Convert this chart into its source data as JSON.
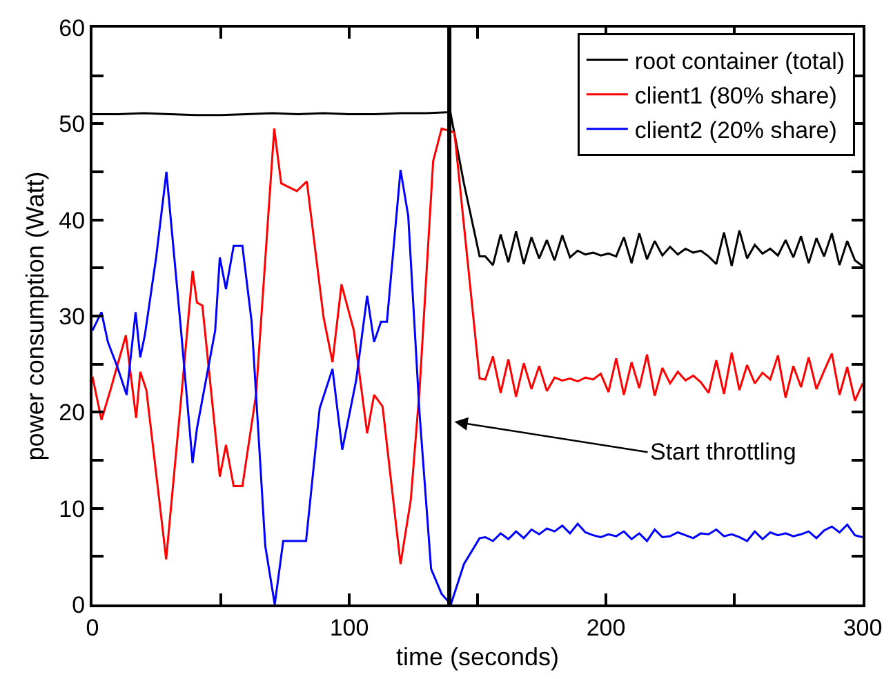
{
  "chart_data": {
    "type": "line",
    "xlabel": "time (seconds)",
    "ylabel": "power consumption (Watt)",
    "xlim": [
      0,
      300
    ],
    "xticks": [
      0,
      {
        "value": 50,
        "label": null
      },
      100,
      {
        "value": 150,
        "label": null
      },
      200,
      {
        "value": 250,
        "label": null
      },
      300
    ],
    "ylim": [
      0,
      60
    ],
    "yticks": [
      0,
      {
        "value": 5,
        "label": null
      },
      10,
      {
        "value": 15,
        "label": null
      },
      20,
      {
        "value": 25,
        "label": null
      },
      30,
      {
        "value": 35,
        "label": null
      },
      40,
      {
        "value": 45,
        "label": null
      },
      50,
      {
        "value": 55,
        "label": null
      },
      60
    ],
    "grid": false,
    "legend": "top right",
    "marker": "none",
    "line_style": "solid",
    "ref_lines": [
      {
        "axis": "x",
        "value": 139,
        "color": "#000000"
      }
    ],
    "annotations": [
      {
        "text": "Start throttling",
        "x": 141,
        "y": 19
      }
    ],
    "series": [
      {
        "name": "root container (total)",
        "color": "#000000",
        "x": [
          0,
          10,
          20,
          30,
          40,
          50,
          60,
          70,
          80,
          90,
          100,
          110,
          120,
          130,
          139.4,
          144.7,
          150.8,
          153,
          156,
          159,
          162,
          165,
          168,
          171,
          174,
          177,
          180,
          183,
          186,
          189,
          192,
          195,
          198,
          201,
          204,
          207,
          210,
          213,
          216,
          219,
          222,
          225,
          228,
          231,
          234,
          237,
          240,
          243,
          246,
          249,
          252,
          255,
          258,
          261,
          264,
          267,
          270,
          273,
          276,
          279,
          282,
          285,
          288,
          291,
          294,
          297,
          300
        ],
        "values": [
          51.0,
          51.0,
          51.1,
          51.0,
          50.9,
          50.9,
          51.0,
          51.1,
          51.0,
          51.1,
          51.0,
          51.0,
          51.1,
          51.1,
          51.2,
          43.8,
          36.2,
          36.2,
          35.3,
          38.5,
          35.6,
          38.8,
          35.4,
          38.2,
          36.0,
          37.9,
          35.8,
          38.4,
          36.1,
          36.8,
          36.4,
          36.6,
          36.3,
          36.5,
          36.2,
          38.2,
          35.5,
          38.6,
          35.9,
          37.8,
          36.3,
          37.2,
          36.4,
          37.0,
          36.6,
          36.8,
          36.2,
          35.4,
          38.7,
          35.2,
          38.9,
          36.0,
          37.4,
          36.5,
          37.0,
          36.3,
          37.9,
          36.1,
          38.3,
          35.5,
          38.1,
          36.2,
          38.6,
          35.3,
          37.8,
          35.8,
          35.2
        ]
      },
      {
        "name": "client1 (80% share)",
        "color": "#ff0000",
        "x": [
          0,
          3.5,
          7,
          13,
          17,
          18.6,
          21,
          26,
          28.7,
          34.5,
          39,
          40.7,
          42.8,
          49.6,
          52,
          55,
          58.4,
          63.7,
          70.8,
          73.5,
          79.6,
          83.5,
          90,
          93.5,
          97,
          101.8,
          107,
          109.7,
          113,
          120,
          124,
          127.4,
          132.7,
          136,
          141,
          150.8,
          153,
          156,
          159,
          162,
          165,
          168,
          171,
          174,
          177,
          180,
          183,
          186,
          189,
          192,
          195,
          198,
          201,
          204,
          207,
          210,
          213,
          216,
          219,
          222,
          225,
          228,
          231,
          234,
          237,
          240,
          243,
          246,
          249,
          252,
          255,
          258,
          261,
          264,
          267,
          270,
          273,
          276,
          279,
          282,
          285,
          288,
          291,
          294,
          297,
          300
        ],
        "values": [
          23.7,
          19.2,
          22.3,
          28,
          19.4,
          24.2,
          22.3,
          10.9,
          4.7,
          21.3,
          34.7,
          31.4,
          31.1,
          13.3,
          16.6,
          12.3,
          12.3,
          21.8,
          49.5,
          43.8,
          43,
          44,
          29.9,
          25.2,
          33.3,
          28.5,
          17.8,
          21.8,
          20.6,
          4.2,
          10.9,
          22.3,
          46.1,
          49.5,
          49.1,
          23.5,
          23.4,
          25.8,
          22.0,
          25.5,
          21.6,
          25.1,
          22.4,
          24.8,
          22.2,
          23.6,
          23.3,
          23.5,
          23.2,
          23.6,
          23.4,
          24.0,
          22.1,
          25.6,
          21.8,
          25.2,
          22.5,
          26.0,
          21.7,
          24.6,
          23.0,
          24.2,
          23.3,
          23.8,
          23.1,
          22.0,
          25.4,
          21.9,
          26.2,
          22.3,
          24.9,
          23.0,
          24.1,
          23.4,
          25.9,
          21.5,
          24.8,
          22.6,
          25.7,
          22.4,
          24.3,
          26.1,
          21.8,
          24.7,
          21.2,
          23.0
        ]
      },
      {
        "name": "client2 (20% share)",
        "color": "#0000ff",
        "x": [
          0,
          3.5,
          6,
          9.7,
          13.3,
          16.8,
          18.6,
          20.4,
          24.8,
          28.8,
          34.5,
          39,
          40.7,
          47.8,
          49.6,
          52,
          55,
          58.4,
          62,
          67.3,
          71,
          74.3,
          83.2,
          88.5,
          93.5,
          97.3,
          102.7,
          107,
          109.7,
          112.4,
          114.7,
          120,
          123,
          127.4,
          131.9,
          136,
          139.6,
          144.7,
          150.8,
          153,
          156,
          159,
          162,
          165,
          168,
          171,
          174,
          177,
          180,
          183,
          186,
          189,
          192,
          195,
          198,
          201,
          204,
          207,
          210,
          213,
          216,
          219,
          222,
          225,
          228,
          231,
          234,
          237,
          240,
          243,
          246,
          249,
          252,
          255,
          258,
          261,
          264,
          267,
          270,
          273,
          276,
          279,
          282,
          285,
          288,
          291,
          294,
          297,
          300
        ],
        "values": [
          28.5,
          30.4,
          27.3,
          24.7,
          21.8,
          30.4,
          25.7,
          28,
          36.1,
          45,
          28.5,
          14.7,
          18.3,
          28.5,
          36.1,
          32.8,
          37.3,
          37.3,
          29.4,
          6.1,
          0,
          6.6,
          6.6,
          20.4,
          24.5,
          16.1,
          23.3,
          32.1,
          27.3,
          29.4,
          29.4,
          45.2,
          40.4,
          19.9,
          3.7,
          1.1,
          0,
          4.2,
          6.9,
          7.0,
          6.6,
          7.4,
          6.8,
          7.6,
          6.9,
          7.8,
          7.3,
          7.9,
          7.6,
          8.2,
          7.4,
          8.4,
          7.5,
          7.2,
          7.0,
          7.3,
          7.1,
          7.6,
          6.8,
          7.4,
          6.6,
          7.8,
          7.0,
          7.1,
          7.5,
          7.2,
          6.9,
          7.4,
          7.3,
          7.8,
          7.1,
          7.3,
          7.0,
          6.6,
          7.6,
          6.8,
          7.5,
          7.2,
          7.4,
          7.1,
          7.3,
          7.6,
          6.9,
          7.7,
          8.1,
          7.5,
          8.3,
          7.2,
          7.0
        ]
      }
    ]
  }
}
